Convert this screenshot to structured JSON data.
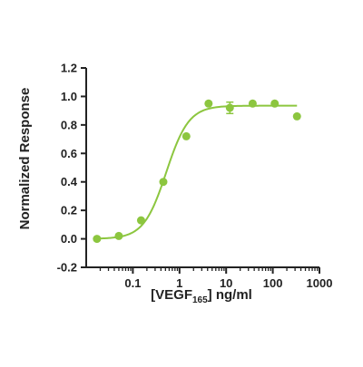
{
  "chart_data": {
    "type": "scatter",
    "title": "",
    "ylabel": "Normalized Response",
    "xlabel_parts": {
      "before": "[VEGF",
      "subscript": "165",
      "after": "] ng/ml"
    },
    "x_scale": "log",
    "xlim": [
      0.01,
      1000
    ],
    "ylim": [
      -0.2,
      1.2
    ],
    "x_ticks": [
      0.1,
      1,
      10,
      100,
      1000
    ],
    "x_tick_labels": [
      "0.1",
      "1",
      "10",
      "100",
      "1000"
    ],
    "y_ticks": [
      -0.2,
      0.0,
      0.2,
      0.4,
      0.6,
      0.8,
      1.0,
      1.2
    ],
    "y_tick_labels": [
      "-0.2",
      "0.0",
      "0.2",
      "0.4",
      "0.6",
      "0.8",
      "1.0",
      "1.2"
    ],
    "color": "#8CC63F",
    "grid": false,
    "series": [
      {
        "x": [
          0.017,
          0.05,
          0.15,
          0.45,
          1.4,
          4.2,
          12,
          37,
          110,
          330
        ],
        "y": [
          0.0,
          0.02,
          0.13,
          0.4,
          0.72,
          0.95,
          0.92,
          0.95,
          0.95,
          0.86
        ],
        "error": [
          0,
          0,
          0,
          0,
          0,
          0,
          0.04,
          0,
          0,
          0
        ]
      }
    ],
    "fit": {
      "model": "4PL",
      "bottom": 0.0,
      "top": 0.935,
      "ec50": 0.52,
      "hill": 1.8
    }
  }
}
